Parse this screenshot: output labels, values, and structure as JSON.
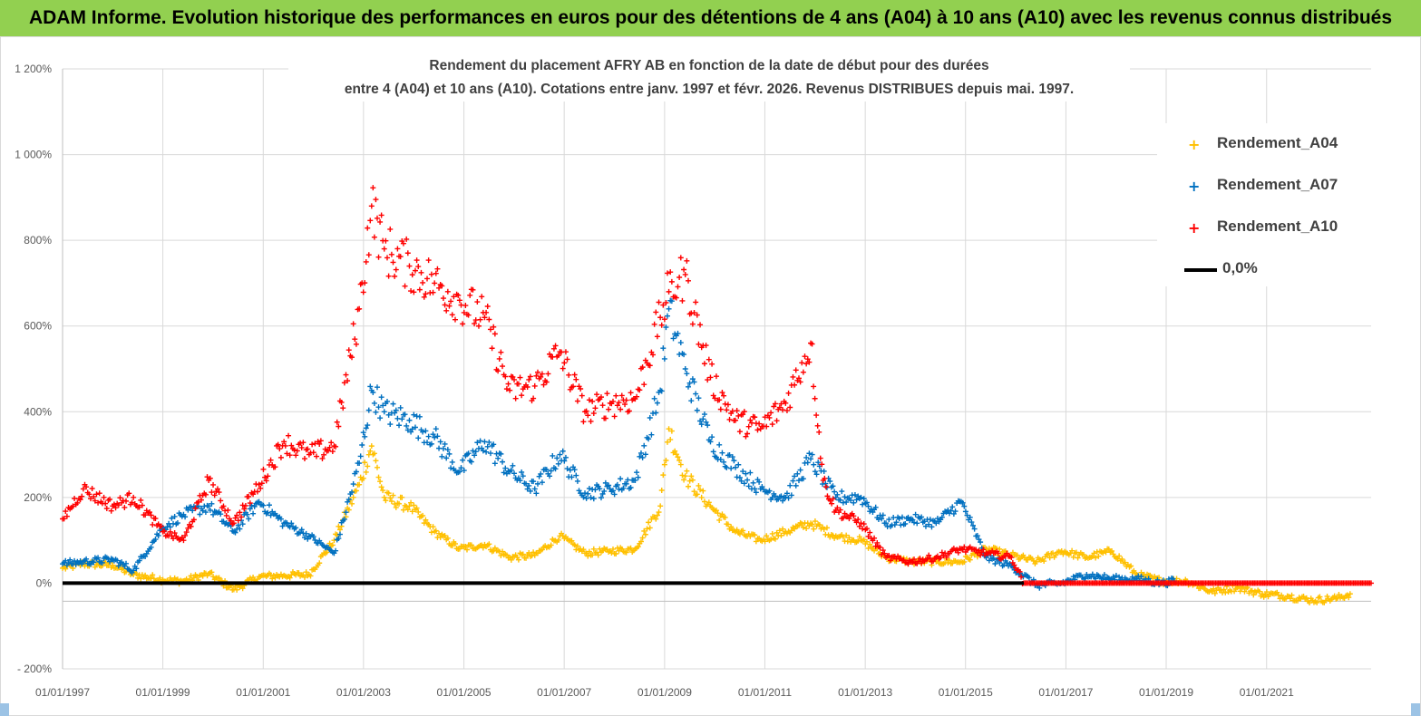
{
  "header": {
    "title": "ADAM Informe. Evolution historique des performances en euros pour des détentions de 4 ans (A04) à 10 ans (A10) avec les revenus connus distribués"
  },
  "chart_data": {
    "type": "scatter",
    "subtitle_line1": "Rendement du placement AFRY AB en fonction de la date de début pour des durées",
    "subtitle_line2": "entre 4 (A04) et 10 ans (A10). Cotations entre janv. 1997 et févr. 2026. Revenus DISTRIBUES depuis mai. 1997.",
    "x_range": [
      "1997-01-01",
      "2023-02-01"
    ],
    "x_ticks": [
      "01/01/1997",
      "01/01/1999",
      "01/01/2001",
      "01/01/2003",
      "01/01/2005",
      "01/01/2007",
      "01/01/2009",
      "01/01/2011",
      "01/01/2013",
      "01/01/2015",
      "01/01/2017",
      "01/01/2019",
      "01/01/2021"
    ],
    "ylim": [
      -200,
      1200
    ],
    "y_ticks": [
      "1 200%",
      "1 000%",
      "800%",
      "600%",
      "400%",
      "200%",
      "0%",
      "- 200%"
    ],
    "grid": true,
    "legend_position": "top-right",
    "series": [
      {
        "name": "Rendement_A04",
        "color": "#ffc000",
        "marker": "plus",
        "points": [
          [
            "1997-01-01",
            35
          ],
          [
            "1997-06-01",
            45
          ],
          [
            "1998-01-01",
            42
          ],
          [
            "1998-06-01",
            20
          ],
          [
            "1999-01-01",
            8
          ],
          [
            "1999-06-01",
            5
          ],
          [
            "1999-12-01",
            22
          ],
          [
            "2000-06-01",
            -15
          ],
          [
            "2000-12-01",
            15
          ],
          [
            "2001-06-01",
            18
          ],
          [
            "2001-12-01",
            20
          ],
          [
            "2002-06-01",
            100
          ],
          [
            "2002-12-01",
            230
          ],
          [
            "2003-03-01",
            320
          ],
          [
            "2003-06-01",
            200
          ],
          [
            "2003-12-01",
            180
          ],
          [
            "2004-06-01",
            120
          ],
          [
            "2004-12-01",
            80
          ],
          [
            "2005-06-01",
            90
          ],
          [
            "2005-12-01",
            60
          ],
          [
            "2006-06-01",
            65
          ],
          [
            "2006-12-01",
            110
          ],
          [
            "2007-06-01",
            70
          ],
          [
            "2007-12-01",
            75
          ],
          [
            "2008-06-01",
            80
          ],
          [
            "2008-12-01",
            180
          ],
          [
            "2009-02-01",
            360
          ],
          [
            "2009-06-01",
            250
          ],
          [
            "2009-12-01",
            180
          ],
          [
            "2010-06-01",
            120
          ],
          [
            "2010-12-01",
            100
          ],
          [
            "2011-06-01",
            120
          ],
          [
            "2011-12-01",
            140
          ],
          [
            "2012-06-01",
            110
          ],
          [
            "2012-12-01",
            100
          ],
          [
            "2013-06-01",
            60
          ],
          [
            "2013-12-01",
            50
          ],
          [
            "2014-06-01",
            50
          ],
          [
            "2014-12-01",
            50
          ],
          [
            "2015-06-01",
            80
          ],
          [
            "2015-12-01",
            65
          ],
          [
            "2016-06-01",
            50
          ],
          [
            "2016-12-01",
            75
          ],
          [
            "2017-06-01",
            60
          ],
          [
            "2017-12-01",
            75
          ],
          [
            "2018-06-01",
            20
          ],
          [
            "2018-12-01",
            5
          ],
          [
            "2019-06-01",
            5
          ],
          [
            "2019-12-01",
            -20
          ],
          [
            "2020-06-01",
            -10
          ],
          [
            "2020-12-01",
            -25
          ],
          [
            "2021-06-01",
            -30
          ],
          [
            "2021-12-01",
            -40
          ],
          [
            "2022-06-01",
            -35
          ],
          [
            "2022-09-01",
            -25
          ]
        ]
      },
      {
        "name": "Rendement_A07",
        "color": "#0070c0",
        "marker": "plus",
        "points": [
          [
            "1997-01-01",
            45
          ],
          [
            "1997-06-01",
            50
          ],
          [
            "1998-01-01",
            55
          ],
          [
            "1998-06-01",
            30
          ],
          [
            "1999-01-01",
            130
          ],
          [
            "1999-06-01",
            160
          ],
          [
            "1999-12-01",
            180
          ],
          [
            "2000-06-01",
            120
          ],
          [
            "2000-12-01",
            190
          ],
          [
            "2001-06-01",
            140
          ],
          [
            "2001-12-01",
            110
          ],
          [
            "2002-06-01",
            70
          ],
          [
            "2002-12-01",
            280
          ],
          [
            "2003-03-01",
            450
          ],
          [
            "2003-06-01",
            400
          ],
          [
            "2003-12-01",
            380
          ],
          [
            "2004-06-01",
            340
          ],
          [
            "2004-12-01",
            260
          ],
          [
            "2005-06-01",
            330
          ],
          [
            "2005-12-01",
            260
          ],
          [
            "2006-06-01",
            220
          ],
          [
            "2006-12-01",
            300
          ],
          [
            "2007-06-01",
            210
          ],
          [
            "2007-12-01",
            220
          ],
          [
            "2008-06-01",
            240
          ],
          [
            "2008-12-01",
            450
          ],
          [
            "2009-02-01",
            640
          ],
          [
            "2009-06-01",
            500
          ],
          [
            "2009-12-01",
            330
          ],
          [
            "2010-06-01",
            270
          ],
          [
            "2010-12-01",
            220
          ],
          [
            "2011-06-01",
            200
          ],
          [
            "2011-12-01",
            290
          ],
          [
            "2012-06-01",
            200
          ],
          [
            "2012-12-01",
            200
          ],
          [
            "2013-06-01",
            140
          ],
          [
            "2013-12-01",
            150
          ],
          [
            "2014-06-01",
            140
          ],
          [
            "2014-12-01",
            190
          ],
          [
            "2015-06-01",
            60
          ],
          [
            "2015-12-01",
            40
          ],
          [
            "2016-06-01",
            -5
          ],
          [
            "2016-12-01",
            0
          ],
          [
            "2017-06-01",
            20
          ],
          [
            "2017-12-01",
            10
          ],
          [
            "2018-06-01",
            10
          ],
          [
            "2018-12-01",
            0
          ],
          [
            "2019-03-01",
            5
          ]
        ]
      },
      {
        "name": "Rendement_A10",
        "color": "#ff0000",
        "marker": "plus",
        "points": [
          [
            "1997-01-01",
            150
          ],
          [
            "1997-06-01",
            220
          ],
          [
            "1998-01-01",
            180
          ],
          [
            "1998-06-01",
            200
          ],
          [
            "1999-01-01",
            120
          ],
          [
            "1999-06-01",
            100
          ],
          [
            "1999-12-01",
            240
          ],
          [
            "2000-06-01",
            140
          ],
          [
            "2000-12-01",
            230
          ],
          [
            "2001-06-01",
            330
          ],
          [
            "2001-12-01",
            300
          ],
          [
            "2002-06-01",
            320
          ],
          [
            "2002-12-01",
            640
          ],
          [
            "2003-03-01",
            880
          ],
          [
            "2003-06-01",
            780
          ],
          [
            "2003-12-01",
            740
          ],
          [
            "2004-06-01",
            700
          ],
          [
            "2004-12-01",
            660
          ],
          [
            "2005-06-01",
            620
          ],
          [
            "2005-12-01",
            450
          ],
          [
            "2006-06-01",
            460
          ],
          [
            "2006-12-01",
            540
          ],
          [
            "2007-06-01",
            400
          ],
          [
            "2007-12-01",
            420
          ],
          [
            "2008-06-01",
            430
          ],
          [
            "2008-12-01",
            620
          ],
          [
            "2009-02-01",
            680
          ],
          [
            "2009-06-01",
            720
          ],
          [
            "2009-12-01",
            480
          ],
          [
            "2010-06-01",
            380
          ],
          [
            "2010-12-01",
            360
          ],
          [
            "2011-06-01",
            420
          ],
          [
            "2011-12-01",
            560
          ],
          [
            "2012-03-01",
            240
          ],
          [
            "2012-06-01",
            170
          ],
          [
            "2012-12-01",
            140
          ],
          [
            "2013-06-01",
            60
          ],
          [
            "2013-12-01",
            50
          ],
          [
            "2014-06-01",
            60
          ],
          [
            "2014-12-01",
            80
          ],
          [
            "2015-06-01",
            70
          ],
          [
            "2015-12-01",
            60
          ],
          [
            "2016-03-01",
            0
          ],
          [
            "2017-06-01",
            0
          ],
          [
            "2018-06-01",
            0
          ],
          [
            "2019-06-01",
            0
          ],
          [
            "2020-06-01",
            0
          ],
          [
            "2021-06-01",
            0
          ],
          [
            "2022-06-01",
            0
          ],
          [
            "2023-02-01",
            0
          ]
        ]
      },
      {
        "name": "0,0%",
        "color": "#000000",
        "marker": "line",
        "points": [
          [
            "1997-01-01",
            0
          ],
          [
            "2016-03-01",
            0
          ]
        ]
      }
    ]
  }
}
